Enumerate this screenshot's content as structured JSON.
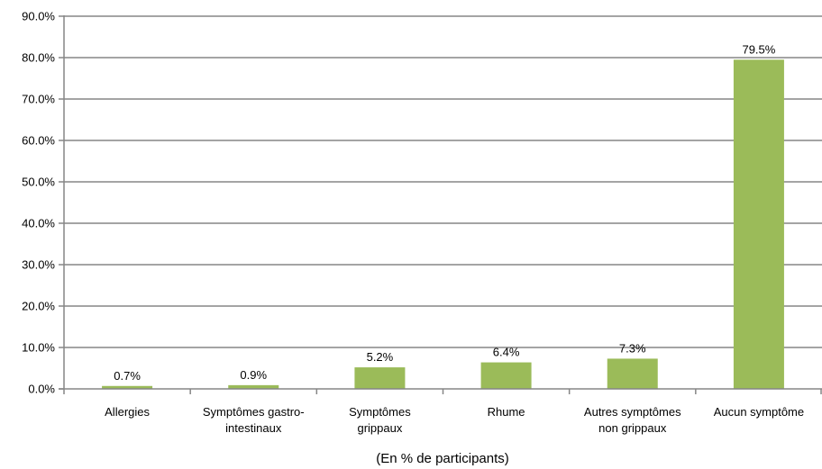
{
  "chart_data": {
    "type": "bar",
    "title": "",
    "xlabel": "(En % de participants)",
    "ylabel": "",
    "ylim": [
      0,
      90
    ],
    "ytick_step": 10,
    "ytick_format": "0.0%",
    "grid": true,
    "legend": "none",
    "bar_color": "#9bbb59",
    "categories": [
      [
        "Allergies"
      ],
      [
        "Symptômes gastro-",
        "intestinaux"
      ],
      [
        "Symptômes",
        "grippaux"
      ],
      [
        "Rhume"
      ],
      [
        "Autres symptômes",
        "non grippaux"
      ],
      [
        "Aucun symptôme"
      ]
    ],
    "values": [
      0.7,
      0.9,
      5.2,
      6.4,
      7.3,
      79.5
    ],
    "data_labels": [
      "0.7%",
      "0.9%",
      "5.2%",
      "6.4%",
      "7.3%",
      "79.5%"
    ],
    "ytick_labels": [
      "0.0%",
      "10.0%",
      "20.0%",
      "30.0%",
      "40.0%",
      "50.0%",
      "60.0%",
      "70.0%",
      "80.0%",
      "90.0%"
    ]
  }
}
